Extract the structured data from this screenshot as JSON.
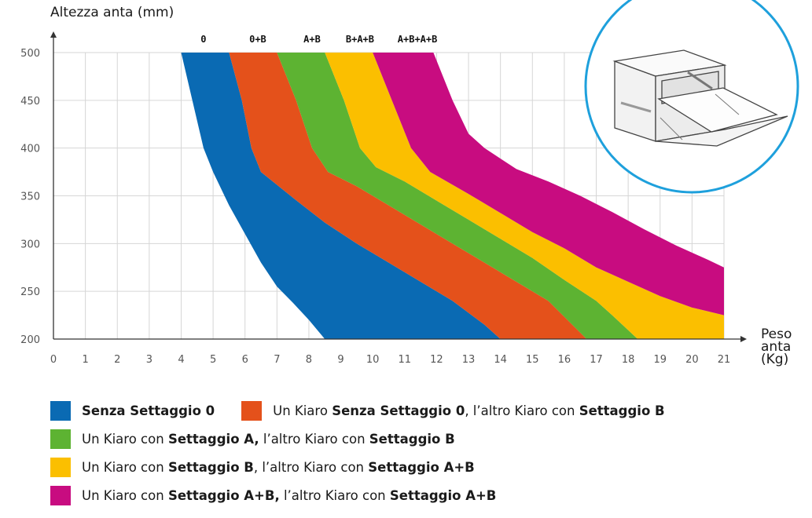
{
  "chart_data": {
    "type": "area",
    "ylabel": "Altezza anta (mm)",
    "xlabel": "Peso anta (Kg)",
    "xlabel_lines": [
      "Peso",
      "anta",
      "(Kg)"
    ],
    "xlim": [
      0,
      21
    ],
    "ylim": [
      200,
      500
    ],
    "x_ticks": [
      0,
      1,
      2,
      3,
      4,
      5,
      6,
      7,
      8,
      9,
      10,
      11,
      12,
      13,
      14,
      15,
      16,
      17,
      18,
      19,
      20,
      21
    ],
    "y_ticks": [
      200,
      250,
      300,
      350,
      400,
      450,
      500
    ],
    "top_labels": [
      {
        "text": "0",
        "x": 4.7
      },
      {
        "text": "0+B",
        "x": 6.4
      },
      {
        "text": "A+B",
        "x": 8.1
      },
      {
        "text": "B+A+B",
        "x": 9.6
      },
      {
        "text": "A+B+A+B",
        "x": 11.4
      }
    ],
    "grid": true,
    "bands": [
      {
        "name": "Senza Settaggio 0",
        "color": "#0a6ab3",
        "left": [
          [
            4.0,
            500
          ],
          [
            4.35,
            450
          ],
          [
            4.7,
            400
          ],
          [
            5.0,
            375
          ],
          [
            5.5,
            340
          ],
          [
            6.0,
            310
          ],
          [
            6.5,
            280
          ],
          [
            7.0,
            255
          ],
          [
            7.5,
            238
          ],
          [
            8.0,
            220
          ],
          [
            8.5,
            200
          ]
        ],
        "right": [
          [
            5.5,
            500
          ],
          [
            5.9,
            450
          ],
          [
            6.2,
            400
          ],
          [
            6.5,
            375
          ],
          [
            7.5,
            348
          ],
          [
            8.5,
            322
          ],
          [
            9.5,
            300
          ],
          [
            10.5,
            280
          ],
          [
            11.5,
            260
          ],
          [
            12.5,
            240
          ],
          [
            13.5,
            215
          ],
          [
            14.0,
            200
          ]
        ]
      },
      {
        "name": "Un Kiaro Senza Settaggio 0, l'altro Kiaro con Settaggio B",
        "color": "#e4511b",
        "left": [
          [
            5.5,
            500
          ],
          [
            5.9,
            450
          ],
          [
            6.2,
            400
          ],
          [
            6.5,
            375
          ],
          [
            7.5,
            348
          ],
          [
            8.5,
            322
          ],
          [
            9.5,
            300
          ],
          [
            10.5,
            280
          ],
          [
            11.5,
            260
          ],
          [
            12.5,
            240
          ],
          [
            13.5,
            215
          ],
          [
            14.0,
            200
          ]
        ],
        "right": [
          [
            7.0,
            500
          ],
          [
            7.6,
            450
          ],
          [
            8.1,
            400
          ],
          [
            8.6,
            375
          ],
          [
            9.5,
            360
          ],
          [
            10.5,
            340
          ],
          [
            11.5,
            320
          ],
          [
            12.5,
            300
          ],
          [
            13.5,
            280
          ],
          [
            14.5,
            260
          ],
          [
            15.5,
            240
          ],
          [
            16.7,
            200
          ]
        ]
      },
      {
        "name": "Un Kiaro con Settaggio A, l'altro Kiaro con Settaggio B",
        "color": "#5db332",
        "left": [
          [
            7.0,
            500
          ],
          [
            7.6,
            450
          ],
          [
            8.1,
            400
          ],
          [
            8.6,
            375
          ],
          [
            9.5,
            360
          ],
          [
            10.5,
            340
          ],
          [
            11.5,
            320
          ],
          [
            12.5,
            300
          ],
          [
            13.5,
            280
          ],
          [
            14.5,
            260
          ],
          [
            15.5,
            240
          ],
          [
            16.7,
            200
          ]
        ],
        "right": [
          [
            8.5,
            500
          ],
          [
            9.1,
            450
          ],
          [
            9.6,
            400
          ],
          [
            10.1,
            380
          ],
          [
            11.0,
            365
          ],
          [
            12.0,
            345
          ],
          [
            13.0,
            325
          ],
          [
            14.0,
            305
          ],
          [
            15.0,
            285
          ],
          [
            16.0,
            262
          ],
          [
            17.0,
            240
          ],
          [
            17.5,
            225
          ],
          [
            18.3,
            200
          ]
        ]
      },
      {
        "name": "Un Kiaro con Settaggio B, l'altro Kiaro con Settaggio A+B",
        "color": "#fbbf00",
        "left": [
          [
            8.5,
            500
          ],
          [
            9.1,
            450
          ],
          [
            9.6,
            400
          ],
          [
            10.1,
            380
          ],
          [
            11.0,
            365
          ],
          [
            12.0,
            345
          ],
          [
            13.0,
            325
          ],
          [
            14.0,
            305
          ],
          [
            15.0,
            285
          ],
          [
            16.0,
            262
          ],
          [
            17.0,
            240
          ],
          [
            17.5,
            225
          ],
          [
            18.3,
            200
          ]
        ],
        "right": [
          [
            10.0,
            500
          ],
          [
            10.6,
            450
          ],
          [
            11.2,
            400
          ],
          [
            11.8,
            375
          ],
          [
            13.0,
            352
          ],
          [
            14.0,
            332
          ],
          [
            15.0,
            312
          ],
          [
            16.0,
            295
          ],
          [
            17.0,
            275
          ],
          [
            18.0,
            260
          ],
          [
            19.0,
            245
          ],
          [
            20.0,
            233
          ],
          [
            21.0,
            225
          ],
          [
            21.0,
            200
          ]
        ]
      },
      {
        "name": "Un Kiaro con Settaggio A+B, l'altro Kiaro con Settaggio A+B",
        "color": "#c80c80",
        "left": [
          [
            10.0,
            500
          ],
          [
            10.6,
            450
          ],
          [
            11.2,
            400
          ],
          [
            11.8,
            375
          ],
          [
            13.0,
            352
          ],
          [
            14.0,
            332
          ],
          [
            15.0,
            312
          ],
          [
            16.0,
            295
          ],
          [
            17.0,
            275
          ],
          [
            18.0,
            260
          ],
          [
            19.0,
            245
          ],
          [
            20.0,
            233
          ],
          [
            21.0,
            225
          ]
        ],
        "right": [
          [
            11.9,
            500
          ],
          [
            12.5,
            450
          ],
          [
            13.0,
            415
          ],
          [
            13.5,
            400
          ],
          [
            14.5,
            378
          ],
          [
            15.5,
            365
          ],
          [
            16.5,
            350
          ],
          [
            17.5,
            333
          ],
          [
            18.5,
            315
          ],
          [
            19.5,
            298
          ],
          [
            20.5,
            283
          ],
          [
            21.0,
            275
          ]
        ]
      }
    ]
  },
  "legend": [
    [
      {
        "swatch": "#0a6ab3",
        "parts": [
          {
            "t": "Senza Settaggio 0",
            "b": true
          }
        ]
      },
      {
        "swatch": "#e4511b",
        "parts": [
          {
            "t": "Un Kiaro ",
            "b": false
          },
          {
            "t": "Senza Settaggio 0",
            "b": true
          },
          {
            "t": ", l’altro Kiaro con ",
            "b": false
          },
          {
            "t": "Settaggio B",
            "b": true
          }
        ]
      }
    ],
    [
      {
        "swatch": "#5db332",
        "parts": [
          {
            "t": "Un Kiaro con ",
            "b": false
          },
          {
            "t": "Settaggio A,",
            "b": true
          },
          {
            "t": " l’altro Kiaro con ",
            "b": false
          },
          {
            "t": "Settaggio B",
            "b": true
          }
        ]
      }
    ],
    [
      {
        "swatch": "#fbbf00",
        "parts": [
          {
            "t": "Un Kiaro con ",
            "b": false
          },
          {
            "t": "Settaggio B",
            "b": true
          },
          {
            "t": ", l’altro Kiaro con ",
            "b": false
          },
          {
            "t": "Settaggio A+B",
            "b": true
          }
        ]
      }
    ],
    [
      {
        "swatch": "#c80c80",
        "parts": [
          {
            "t": "Un Kiaro con ",
            "b": false
          },
          {
            "t": "Settaggio A+B,",
            "b": true
          },
          {
            "t": " l’altro Kiaro con ",
            "b": false
          },
          {
            "t": "Settaggio A+B",
            "b": true
          }
        ]
      }
    ]
  ],
  "colors": {
    "circle_border": "#1ea0dc",
    "grid": "#d6d6d6",
    "axis": "#333333"
  }
}
